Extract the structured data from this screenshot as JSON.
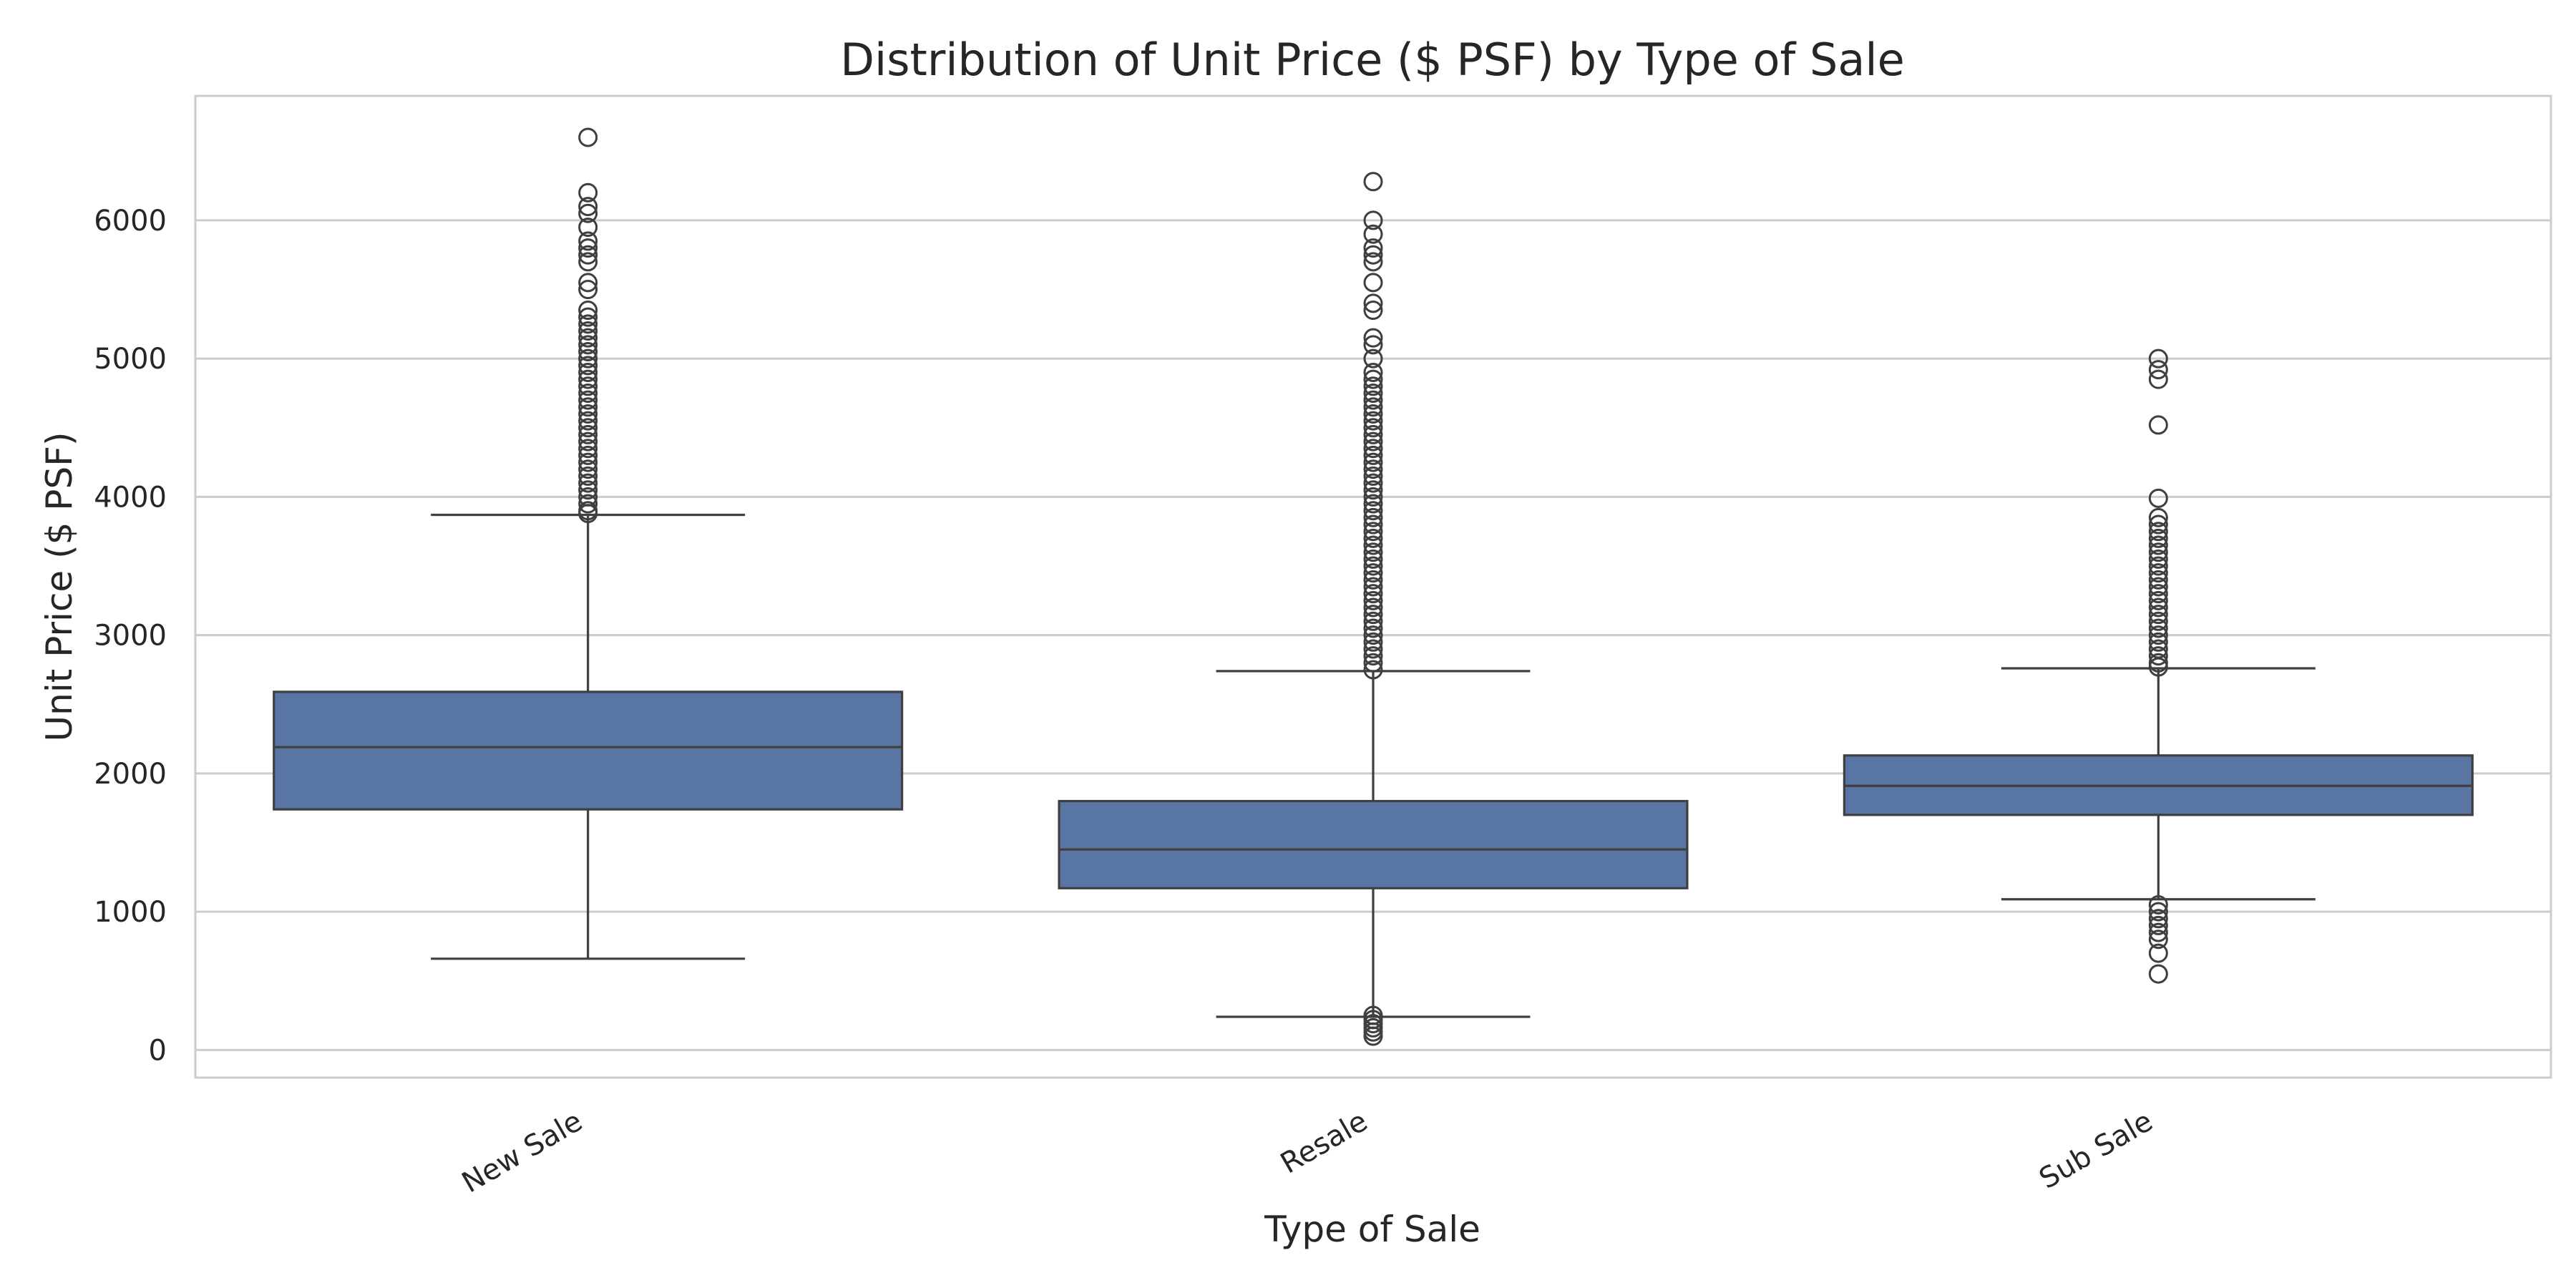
{
  "chart_data": {
    "type": "box",
    "title": "Distribution of Unit Price ($ PSF) by Type of Sale",
    "xlabel": "Type of Sale",
    "ylabel": "Unit Price ($ PSF)",
    "ylim": [
      -200,
      6900
    ],
    "yticks": [
      0,
      1000,
      2000,
      3000,
      4000,
      5000,
      6000
    ],
    "ytick_labels": [
      "0",
      "1000",
      "2000",
      "3000",
      "4000",
      "5000",
      "6000"
    ],
    "grid": "horizontal",
    "colors": {
      "box_fill": "#5875a4",
      "line": "#3f3f3f",
      "grid": "#cccccc",
      "frame": "#cccccc"
    },
    "categories": [
      "New Sale",
      "Resale",
      "Sub Sale"
    ],
    "boxes": [
      {
        "category": "New Sale",
        "whisker_low": 660,
        "q1": 1740,
        "median": 2190,
        "q3": 2590,
        "whisker_high": 3870,
        "outliers_high_dense_range": [
          3870,
          4850
        ],
        "outliers": [
          3880,
          3900,
          3950,
          4000,
          4050,
          4100,
          4150,
          4200,
          4250,
          4300,
          4350,
          4400,
          4450,
          4500,
          4550,
          4600,
          4650,
          4700,
          4750,
          4800,
          4850,
          4900,
          4950,
          5000,
          5050,
          5100,
          5150,
          5200,
          5250,
          5300,
          5350,
          5500,
          5550,
          5700,
          5750,
          5800,
          5850,
          5950,
          6050,
          6100,
          6200,
          6600
        ]
      },
      {
        "category": "Resale",
        "whisker_low": 240,
        "q1": 1170,
        "median": 1450,
        "q3": 1800,
        "whisker_high": 2740,
        "outliers_high_dense_range": [
          2740,
          4900
        ],
        "outliers": [
          100,
          130,
          160,
          190,
          220,
          250,
          2750,
          2800,
          2850,
          2900,
          2950,
          3000,
          3050,
          3100,
          3150,
          3200,
          3250,
          3300,
          3350,
          3400,
          3450,
          3500,
          3550,
          3600,
          3650,
          3700,
          3750,
          3800,
          3850,
          3900,
          3950,
          4000,
          4050,
          4100,
          4150,
          4200,
          4250,
          4300,
          4350,
          4400,
          4450,
          4500,
          4550,
          4600,
          4650,
          4700,
          4750,
          4800,
          4850,
          4900,
          5000,
          5100,
          5150,
          5350,
          5400,
          5550,
          5700,
          5750,
          5800,
          5900,
          6000,
          6280
        ]
      },
      {
        "category": "Sub Sale",
        "whisker_low": 1090,
        "q1": 1700,
        "median": 1910,
        "q3": 2130,
        "whisker_high": 2760,
        "outliers_high_dense_range": [
          2760,
          3500
        ],
        "outliers": [
          550,
          700,
          800,
          850,
          900,
          950,
          1000,
          1050,
          2770,
          2800,
          2850,
          2900,
          2950,
          3000,
          3050,
          3100,
          3150,
          3200,
          3250,
          3300,
          3350,
          3400,
          3450,
          3500,
          3550,
          3600,
          3650,
          3700,
          3750,
          3800,
          3850,
          3990,
          4520,
          4850,
          4920,
          5000
        ]
      }
    ]
  }
}
